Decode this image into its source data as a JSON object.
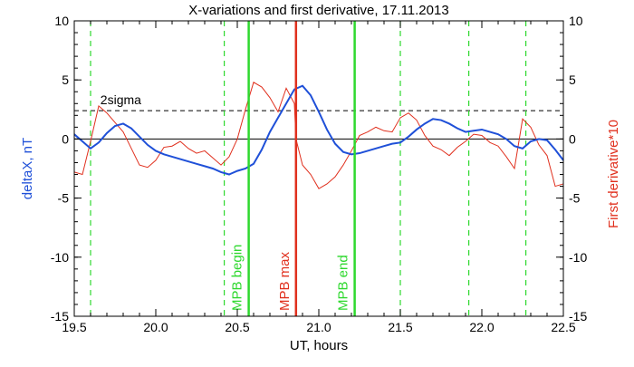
{
  "chart_data": {
    "type": "line",
    "title": "X-variations and first derivative, 17.11.2013",
    "xlabel": "UT, hours",
    "ylabel_left": "deltaX, nT",
    "ylabel_right": "First derivative*10",
    "xlim": [
      19.5,
      22.5
    ],
    "ylim": [
      -15,
      10
    ],
    "x_ticks": [
      "19.5",
      "20.0",
      "20.5",
      "21.0",
      "21.5",
      "22.0",
      "22.5"
    ],
    "y_ticks_left": [
      "-15",
      "-10",
      "-5",
      "0",
      "5",
      "10"
    ],
    "y_ticks_right": [
      "-15",
      "-10",
      "-5",
      "0",
      "5",
      "10"
    ],
    "colors": {
      "deltaX": "#1f50d8",
      "derivative": "#e0301e",
      "dashed_vertical": "#2ed82e",
      "mpb_lines": "#2ed82e",
      "max_line": "#e0301e"
    },
    "series": [
      {
        "name": "deltaX, nT",
        "axis": "left",
        "x": [
          19.5,
          19.55,
          19.6,
          19.65,
          19.7,
          19.75,
          19.8,
          19.85,
          19.9,
          19.95,
          20.0,
          20.05,
          20.1,
          20.15,
          20.2,
          20.25,
          20.3,
          20.35,
          20.4,
          20.45,
          20.5,
          20.55,
          20.6,
          20.65,
          20.7,
          20.75,
          20.8,
          20.85,
          20.9,
          20.95,
          21.0,
          21.05,
          21.1,
          21.15,
          21.2,
          21.25,
          21.3,
          21.35,
          21.4,
          21.45,
          21.5,
          21.55,
          21.6,
          21.65,
          21.7,
          21.75,
          21.8,
          21.85,
          21.9,
          21.95,
          22.0,
          22.05,
          22.1,
          22.15,
          22.2,
          22.25,
          22.3,
          22.35,
          22.4,
          22.45,
          22.5
        ],
        "values": [
          0.4,
          -0.2,
          -0.8,
          -0.3,
          0.5,
          1.1,
          1.3,
          0.9,
          0.2,
          -0.5,
          -1.0,
          -1.3,
          -1.5,
          -1.7,
          -1.9,
          -2.1,
          -2.3,
          -2.5,
          -2.8,
          -3.0,
          -2.7,
          -2.5,
          -2.1,
          -0.9,
          0.6,
          1.8,
          3.0,
          4.2,
          4.5,
          3.7,
          2.3,
          0.8,
          -0.4,
          -1.1,
          -1.3,
          -1.2,
          -1.0,
          -0.8,
          -0.6,
          -0.4,
          -0.3,
          0.2,
          0.8,
          1.3,
          1.7,
          1.6,
          1.3,
          0.9,
          0.6,
          0.7,
          0.8,
          0.6,
          0.4,
          0.0,
          -0.6,
          -0.8,
          -0.2,
          0.0,
          -0.1,
          -0.9,
          -1.8
        ]
      },
      {
        "name": "First derivative*10",
        "axis": "right",
        "x": [
          19.5,
          19.55,
          19.6,
          19.65,
          19.7,
          19.75,
          19.8,
          19.85,
          19.9,
          19.95,
          20.0,
          20.05,
          20.1,
          20.15,
          20.2,
          20.25,
          20.3,
          20.35,
          20.4,
          20.45,
          20.5,
          20.55,
          20.6,
          20.65,
          20.7,
          20.75,
          20.8,
          20.85,
          20.86,
          20.9,
          20.95,
          21.0,
          21.05,
          21.1,
          21.15,
          21.2,
          21.25,
          21.3,
          21.35,
          21.4,
          21.45,
          21.5,
          21.55,
          21.6,
          21.65,
          21.7,
          21.75,
          21.8,
          21.85,
          21.9,
          21.95,
          22.0,
          22.05,
          22.1,
          22.15,
          22.2,
          22.25,
          22.3,
          22.35,
          22.4,
          22.45,
          22.5
        ],
        "values": [
          -2.8,
          -3.0,
          -0.2,
          2.8,
          2.2,
          1.4,
          0.6,
          -0.8,
          -2.2,
          -2.4,
          -1.8,
          -0.7,
          -0.6,
          -0.2,
          -0.8,
          -1.2,
          -1.0,
          -1.6,
          -2.2,
          -1.5,
          0.0,
          2.5,
          4.8,
          4.4,
          3.5,
          2.3,
          4.3,
          3.0,
          0.0,
          -2.2,
          -3.0,
          -4.2,
          -3.8,
          -3.2,
          -2.2,
          -1.0,
          0.3,
          0.6,
          1.0,
          0.7,
          0.6,
          1.8,
          2.2,
          1.6,
          0.3,
          -0.6,
          -0.9,
          -1.4,
          -0.7,
          -0.2,
          0.4,
          0.3,
          -0.3,
          -0.6,
          -1.5,
          -2.5,
          1.7,
          1.0,
          -0.5,
          -1.4,
          -4.0,
          -3.8
        ]
      }
    ],
    "reference_lines": {
      "zero_line": 0,
      "sigma_level": 2.4,
      "sigma_label": "2sigma",
      "dashed_x": [
        19.6,
        20.42,
        21.5,
        21.92,
        22.27
      ]
    },
    "markers": [
      {
        "label": "MPB begin",
        "x": 20.57,
        "color": "#2ed82e"
      },
      {
        "label": "MPB max",
        "x": 20.86,
        "color": "#e0301e"
      },
      {
        "label": "MPB end",
        "x": 21.22,
        "color": "#2ed82e"
      }
    ],
    "grid": false,
    "legend": "none"
  }
}
